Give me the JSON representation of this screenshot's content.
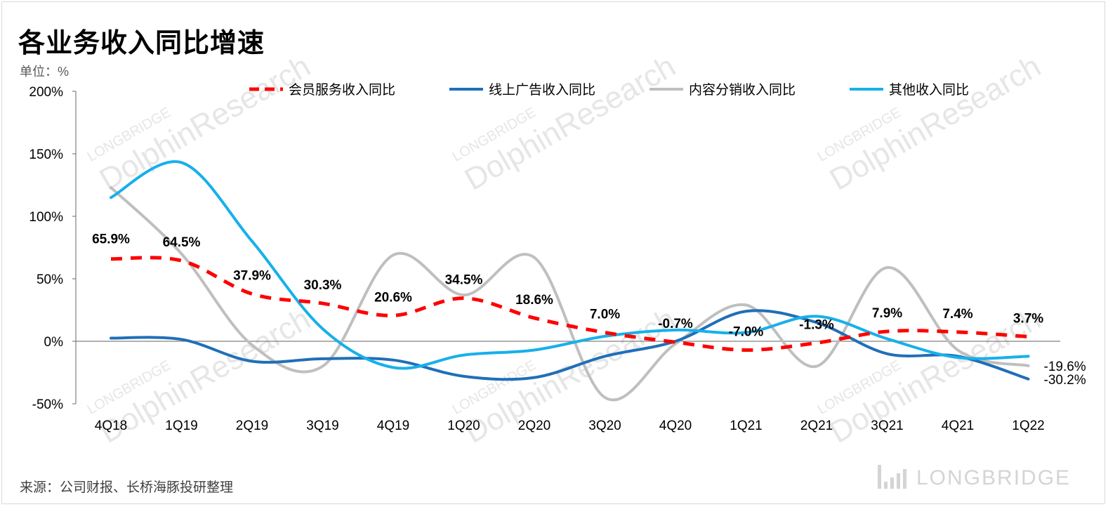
{
  "header": {
    "title": "各业务收入同比增速",
    "unit": "单位：%"
  },
  "footer": {
    "source": "来源：公司财报、长桥海豚投研整理",
    "brand": "LONGBRIDGE"
  },
  "watermark": {
    "line1": "LONGBRIDGE",
    "line2": "DolphinResearch"
  },
  "colors": {
    "membership": "#ff0000",
    "online_ads": "#1f6fb8",
    "content_distribution": "#bfbfbf",
    "other": "#17b0ea",
    "axis": "#808080"
  },
  "chart_data": {
    "type": "line",
    "title": "各业务收入同比增速",
    "ylabel": "单位：%",
    "xlabel": "",
    "ylim": [
      -50,
      200
    ],
    "y_ticks": [
      200,
      150,
      100,
      50,
      0,
      -50
    ],
    "y_tick_labels": [
      "200%",
      "150%",
      "100%",
      "50%",
      "0%",
      "-50%"
    ],
    "categories": [
      "4Q18",
      "1Q19",
      "2Q19",
      "3Q19",
      "4Q19",
      "1Q20",
      "2Q20",
      "3Q20",
      "4Q20",
      "1Q21",
      "2Q21",
      "3Q21",
      "4Q21",
      "1Q22"
    ],
    "legend_position": "top",
    "series": [
      {
        "key": "membership",
        "name": "会员服务收入同比",
        "style": "dashed",
        "values": [
          65.9,
          64.5,
          37.9,
          30.3,
          20.6,
          34.5,
          18.6,
          7.0,
          -0.7,
          -7.0,
          -1.3,
          7.9,
          7.4,
          3.7
        ],
        "labels": [
          "65.9%",
          "64.5%",
          "37.9%",
          "30.3%",
          "20.6%",
          "34.5%",
          "18.6%",
          "7.0%",
          "-0.7%",
          "-7.0%",
          "-1.3%",
          "7.9%",
          "7.4%",
          "3.7%"
        ]
      },
      {
        "key": "online_ads",
        "name": "线上广告收入同比",
        "style": "solid",
        "values": [
          2.5,
          1.5,
          -16,
          -14,
          -15,
          -28,
          -29,
          -12,
          0,
          24,
          15,
          -10,
          -12,
          -30.2
        ],
        "end_label": "-30.2%"
      },
      {
        "key": "content_distribution",
        "name": "内容分销收入同比",
        "style": "solid",
        "values": [
          123,
          70,
          -3,
          -20,
          69,
          37,
          67,
          -45,
          -2,
          29,
          -20,
          59,
          -7,
          -19.6
        ],
        "end_label": "-19.6%"
      },
      {
        "key": "other",
        "name": "其他收入同比",
        "style": "solid",
        "values": [
          115,
          143,
          80,
          10,
          -21,
          -11,
          -7,
          4,
          9,
          7,
          20,
          2,
          -13,
          -12
        ],
        "end_label": ""
      }
    ]
  }
}
